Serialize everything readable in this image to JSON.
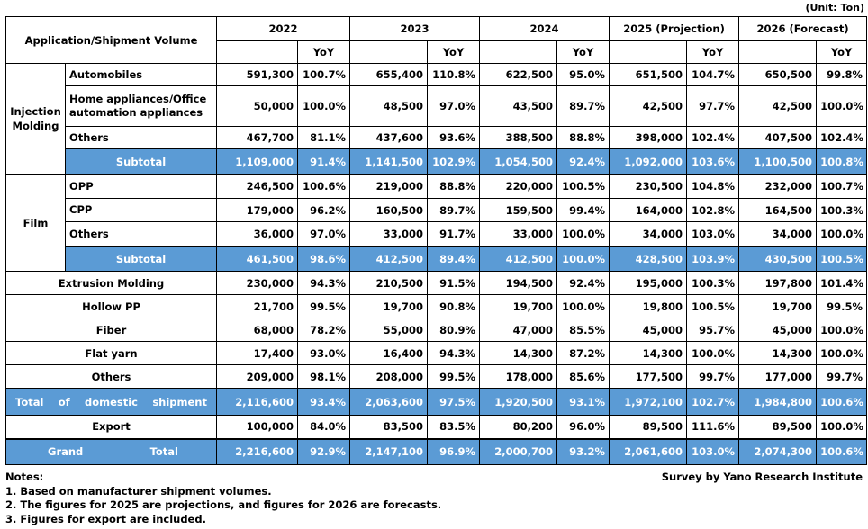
{
  "unit": "(Unit: Ton)",
  "header": {
    "app_label": "Application/Shipment Volume",
    "years": [
      "2022",
      "2023",
      "2024",
      "2025 (Projection)",
      "2026 (Forecast)"
    ],
    "yoy": "YoY"
  },
  "groups": {
    "injection": "Injection Molding",
    "film": "Film"
  },
  "rows": [
    {
      "label": "Automobiles",
      "cells": [
        "591,300",
        "100.7%",
        "655,400",
        "110.8%",
        "622,500",
        "95.0%",
        "651,500",
        "104.7%",
        "650,500",
        "99.8%"
      ]
    },
    {
      "label": "Home appliances/Office automation appliances",
      "cells": [
        "50,000",
        "100.0%",
        "48,500",
        "97.0%",
        "43,500",
        "89.7%",
        "42,500",
        "97.7%",
        "42,500",
        "100.0%"
      ]
    },
    {
      "label": "Others",
      "cells": [
        "467,700",
        "81.1%",
        "437,600",
        "93.6%",
        "388,500",
        "88.8%",
        "398,000",
        "102.4%",
        "407,500",
        "102.4%"
      ]
    },
    {
      "label": "Subtotal",
      "cells": [
        "1,109,000",
        "91.4%",
        "1,141,500",
        "102.9%",
        "1,054,500",
        "92.4%",
        "1,092,000",
        "103.6%",
        "1,100,500",
        "100.8%"
      ]
    },
    {
      "label": "OPP",
      "cells": [
        "246,500",
        "100.6%",
        "219,000",
        "88.8%",
        "220,000",
        "100.5%",
        "230,500",
        "104.8%",
        "232,000",
        "100.7%"
      ]
    },
    {
      "label": "CPP",
      "cells": [
        "179,000",
        "96.2%",
        "160,500",
        "89.7%",
        "159,500",
        "99.4%",
        "164,000",
        "102.8%",
        "164,500",
        "100.3%"
      ]
    },
    {
      "label": "Others",
      "cells": [
        "36,000",
        "97.0%",
        "33,000",
        "91.7%",
        "33,000",
        "100.0%",
        "34,000",
        "103.0%",
        "34,000",
        "100.0%"
      ]
    },
    {
      "label": "Subtotal",
      "cells": [
        "461,500",
        "98.6%",
        "412,500",
        "89.4%",
        "412,500",
        "100.0%",
        "428,500",
        "103.9%",
        "430,500",
        "100.5%"
      ]
    },
    {
      "label": "Extrusion Molding",
      "cells": [
        "230,000",
        "94.3%",
        "210,500",
        "91.5%",
        "194,500",
        "92.4%",
        "195,000",
        "100.3%",
        "197,800",
        "101.4%"
      ]
    },
    {
      "label": "Hollow PP",
      "cells": [
        "21,700",
        "99.5%",
        "19,700",
        "90.8%",
        "19,700",
        "100.0%",
        "19,800",
        "100.5%",
        "19,700",
        "99.5%"
      ]
    },
    {
      "label": "Fiber",
      "cells": [
        "68,000",
        "78.2%",
        "55,000",
        "80.9%",
        "47,000",
        "85.5%",
        "45,000",
        "95.7%",
        "45,000",
        "100.0%"
      ]
    },
    {
      "label": "Flat yarn",
      "cells": [
        "17,400",
        "93.0%",
        "16,400",
        "94.3%",
        "14,300",
        "87.2%",
        "14,300",
        "100.0%",
        "14,300",
        "100.0%"
      ]
    },
    {
      "label": "Others",
      "cells": [
        "209,000",
        "98.1%",
        "208,000",
        "99.5%",
        "178,000",
        "85.6%",
        "177,500",
        "99.7%",
        "177,000",
        "99.7%"
      ]
    },
    {
      "label": "Total of domestic shipment",
      "cells": [
        "2,116,600",
        "93.4%",
        "2,063,600",
        "97.5%",
        "1,920,500",
        "93.1%",
        "1,972,100",
        "102.7%",
        "1,984,800",
        "100.6%"
      ]
    },
    {
      "label": "Export",
      "cells": [
        "100,000",
        "84.0%",
        "83,500",
        "83.5%",
        "80,200",
        "96.0%",
        "89,500",
        "111.6%",
        "89,500",
        "100.0%"
      ]
    },
    {
      "label": "Grand Total",
      "cells": [
        "2,216,600",
        "92.9%",
        "2,147,100",
        "96.9%",
        "2,000,700",
        "93.2%",
        "2,061,600",
        "103.0%",
        "2,074,300",
        "100.6%"
      ]
    }
  ],
  "notes": {
    "title": "Notes:",
    "items": [
      "1. Based on manufacturer shipment volumes.",
      "2. The figures for 2025 are projections, and figures for 2026 are forecasts.",
      "3. Figures for export are included."
    ]
  },
  "source": "Survey by Yano Research Institute"
}
